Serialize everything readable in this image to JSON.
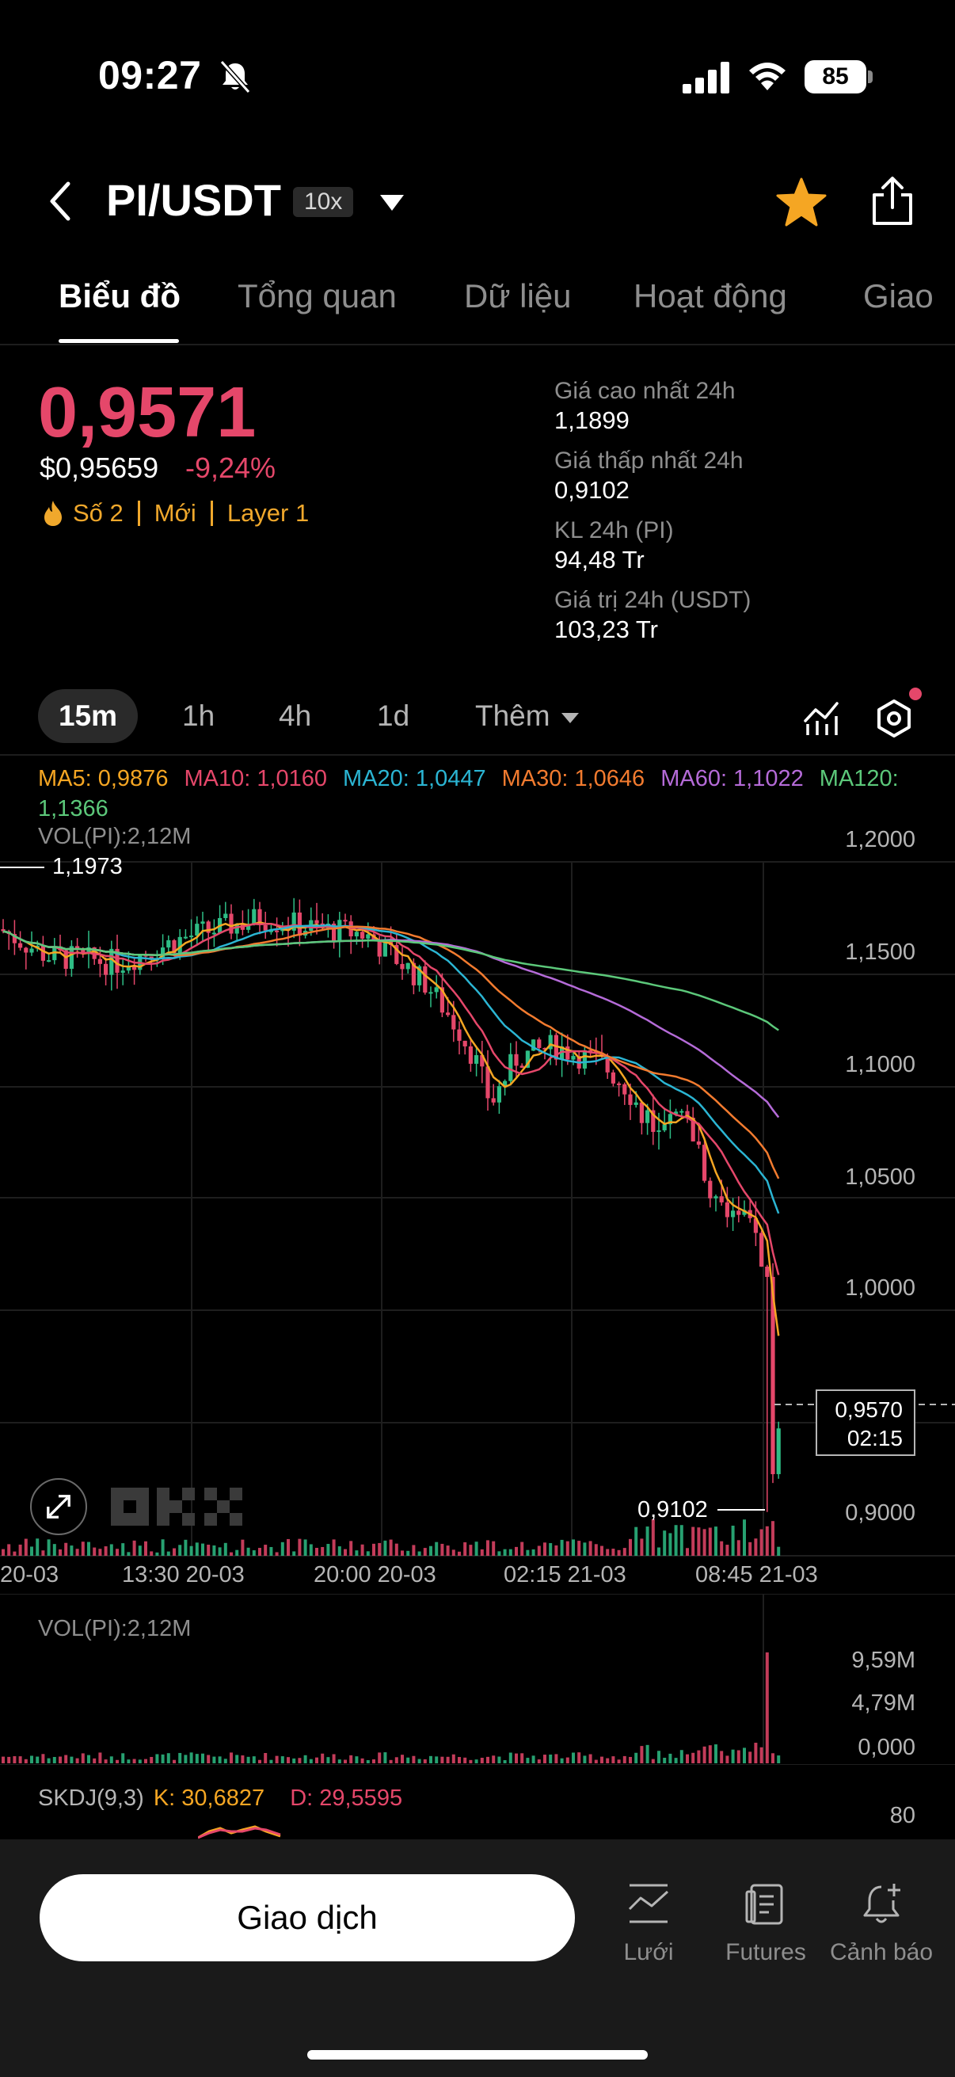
{
  "status": {
    "time": "09:27",
    "battery": "85"
  },
  "header": {
    "pair": "PI/USDT",
    "leverage": "10x"
  },
  "tabs": [
    "Biểu đồ",
    "Tổng quan",
    "Dữ liệu",
    "Hoạt động",
    "Giao"
  ],
  "price": {
    "last": "0,9571",
    "usd": "$0,95659",
    "change": "-9,24%",
    "tags": [
      "Số 2",
      "Mới",
      "Layer 1"
    ]
  },
  "stats": [
    {
      "label": "Giá cao nhất 24h",
      "value": "1,1899"
    },
    {
      "label": "Giá thấp nhất 24h",
      "value": "0,9102"
    },
    {
      "label": "KL 24h (PI)",
      "value": "94,48 Tr"
    },
    {
      "label": "Giá trị 24h (USDT)",
      "value": "103,23 Tr"
    }
  ],
  "intervals": [
    "15m",
    "1h",
    "4h",
    "1d",
    "Thêm"
  ],
  "ma_legend": [
    {
      "text": "MA5: 0,9876",
      "color": "#f5a623"
    },
    {
      "text": "MA10: 1,0160",
      "color": "#e5476a"
    },
    {
      "text": "MA20: 1,0447",
      "color": "#2bb5d3"
    },
    {
      "text": "MA30: 1,0646",
      "color": "#f27b2f"
    },
    {
      "text": "MA60: 1,1022",
      "color": "#b56bd8"
    },
    {
      "text": "MA120: 1,1366",
      "color": "#5cc87a"
    }
  ],
  "vol_label": "VOL(PI):2,12M",
  "chart": {
    "price_ticks": [
      "1,2000",
      "1,1500",
      "1,1000",
      "1,0500",
      "1,0000",
      "0,9000"
    ],
    "high_marker": "1,1973",
    "low_marker": "0,9102",
    "current_price": "0,9570",
    "countdown": "02:15",
    "time_ticks": [
      "20-03",
      "13:30 20-03",
      "20:00 20-03",
      "02:15 21-03",
      "08:45 21-03"
    ]
  },
  "volume_pane": {
    "label": "VOL(PI):2,12M",
    "ticks": [
      "9,59M",
      "4,79M",
      "0,000"
    ]
  },
  "skdj": {
    "name": "SKDJ(9,3)",
    "k": "K: 30,6827",
    "d": "D: 29,5595",
    "tick": "80"
  },
  "bottom": {
    "trade_label": "Giao dịch",
    "actions": [
      "Lưới",
      "Futures",
      "Cảnh báo"
    ]
  },
  "colors": {
    "up": "#2ebd85",
    "down": "#e5476a",
    "accent": "#f0a82c"
  }
}
